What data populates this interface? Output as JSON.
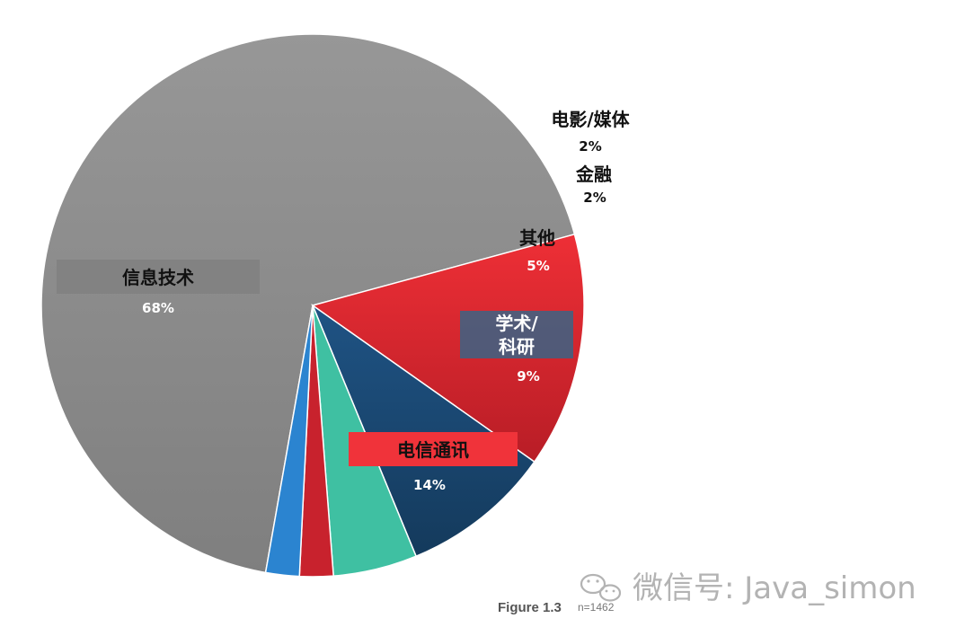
{
  "chart_data": {
    "type": "pie",
    "slices": [
      {
        "label": "信息技术",
        "value": 68,
        "value_label": "68%",
        "color": "#8c8c8c"
      },
      {
        "label": "电信通讯",
        "value": 14,
        "value_label": "14%",
        "color": "#d8262f"
      },
      {
        "label": "学术/科研",
        "label_lines": [
          "学术/",
          "科研"
        ],
        "value": 9,
        "value_label": "9%",
        "color": "#1b4770"
      },
      {
        "label": "其他",
        "value": 5,
        "value_label": "5%",
        "color": "#3fc0a2"
      },
      {
        "label": "金融",
        "value": 2,
        "value_label": "2%",
        "color": "#c8222d"
      },
      {
        "label": "电影/媒体",
        "value": 2,
        "value_label": "2%",
        "color": "#2b84d0"
      }
    ]
  },
  "caption": {
    "figure": "Figure 1.3",
    "n": "n=1462"
  },
  "watermark": {
    "text": "微信号: Java_simon"
  }
}
